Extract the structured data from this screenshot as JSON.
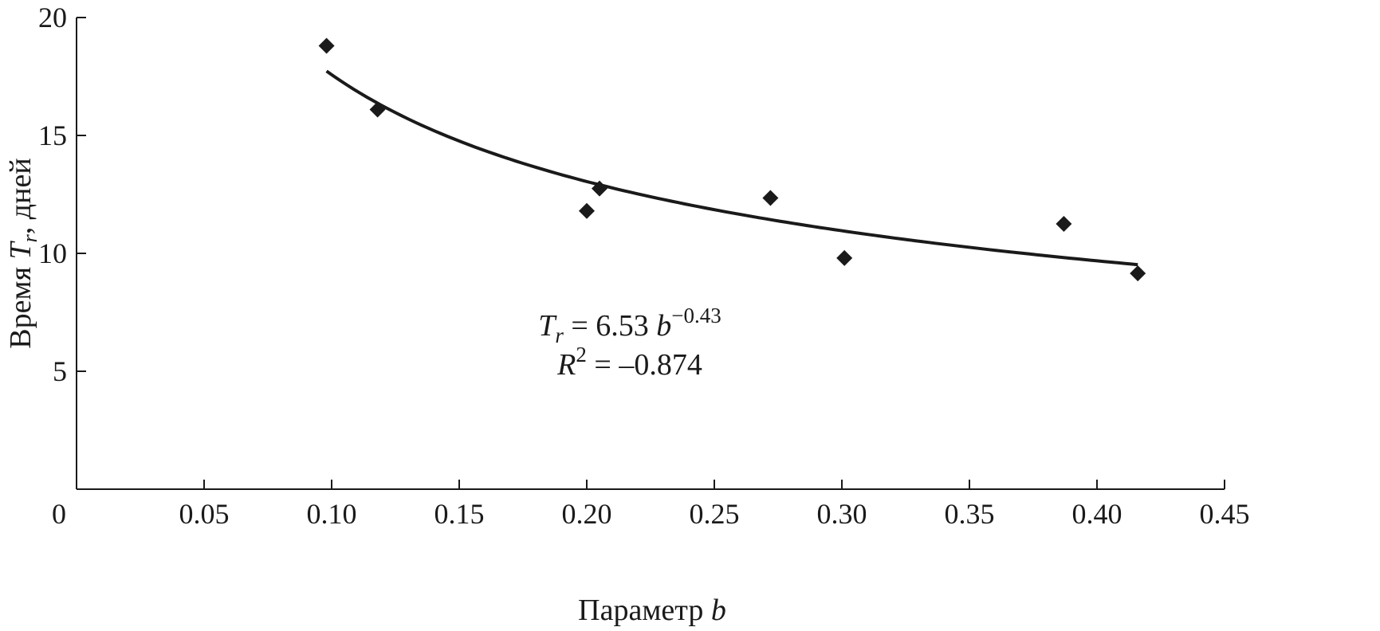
{
  "chart_data": {
    "type": "scatter",
    "title": "",
    "xlabel": {
      "text": "Параметр ",
      "var": "b"
    },
    "ylabel": {
      "prefix": "Время ",
      "var": "T",
      "sub": "r",
      "suffix": ", дней"
    },
    "xlim": [
      0,
      0.45
    ],
    "ylim": [
      0,
      20
    ],
    "x_ticks": [
      {
        "value": 0.05,
        "label": "0.05"
      },
      {
        "value": 0.1,
        "label": "0.10"
      },
      {
        "value": 0.15,
        "label": "0.15"
      },
      {
        "value": 0.2,
        "label": "0.20"
      },
      {
        "value": 0.25,
        "label": "0.25"
      },
      {
        "value": 0.3,
        "label": "0.30"
      },
      {
        "value": 0.35,
        "label": "0.35"
      },
      {
        "value": 0.4,
        "label": "0.40"
      },
      {
        "value": 0.45,
        "label": "0.45"
      }
    ],
    "origin_label": "0",
    "y_ticks": [
      {
        "value": 5,
        "label": "5"
      },
      {
        "value": 10,
        "label": "10"
      },
      {
        "value": 15,
        "label": "15"
      },
      {
        "value": 20,
        "label": "20"
      }
    ],
    "grid": false,
    "series": [
      {
        "type": "scatter",
        "marker": "diamond",
        "color": "#1a1a1a",
        "points": [
          {
            "x": 0.098,
            "y": 18.8
          },
          {
            "x": 0.118,
            "y": 16.1
          },
          {
            "x": 0.2,
            "y": 11.8
          },
          {
            "x": 0.205,
            "y": 12.75
          },
          {
            "x": 0.272,
            "y": 12.35
          },
          {
            "x": 0.301,
            "y": 9.8
          },
          {
            "x": 0.387,
            "y": 11.25
          },
          {
            "x": 0.416,
            "y": 9.15
          }
        ]
      },
      {
        "type": "line",
        "fit": "power",
        "coefficient": 6.53,
        "exponent": -0.43,
        "x_range": [
          0.098,
          0.416
        ],
        "color": "#1a1a1a"
      }
    ],
    "annotation": {
      "eq_lhs_var": "T",
      "eq_lhs_sub": "r",
      "eq_rhs": " = 6.53 ",
      "eq_var": "b",
      "eq_exp": "−0.43",
      "r2_var": "R",
      "r2_sup": "2",
      "r2_rhs": " = –0.874"
    }
  }
}
